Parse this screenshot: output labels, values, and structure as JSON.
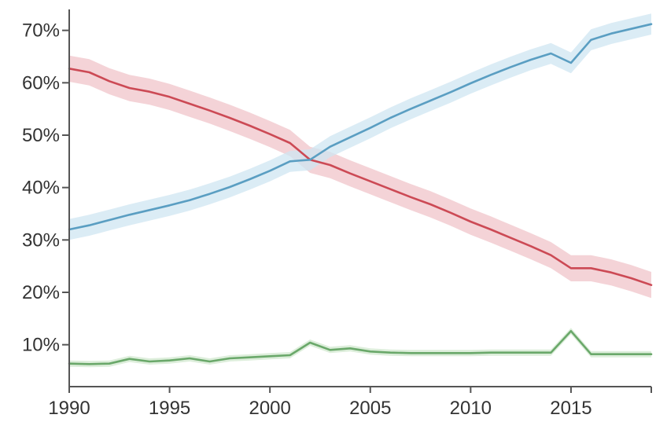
{
  "chart_data": {
    "type": "line",
    "title": "",
    "xlabel": "",
    "ylabel": "",
    "xlim": [
      1990,
      2019
    ],
    "ylim": [
      2,
      74
    ],
    "grid": false,
    "x_ticks": [
      1990,
      1995,
      2000,
      2005,
      2010,
      2015
    ],
    "y_ticks": [
      10,
      20,
      30,
      40,
      50,
      60,
      70
    ],
    "y_tick_labels": [
      "10%",
      "20%",
      "30%",
      "40%",
      "50%",
      "60%",
      "70%"
    ],
    "x": [
      1990,
      1991,
      1992,
      1993,
      1994,
      1995,
      1996,
      1997,
      1998,
      1999,
      2000,
      2001,
      2002,
      2003,
      2004,
      2005,
      2006,
      2007,
      2008,
      2009,
      2010,
      2011,
      2012,
      2013,
      2014,
      2015,
      2016,
      2017,
      2018,
      2019
    ],
    "series": [
      {
        "color": "#cc4a55",
        "band_color": "#f0c4ca",
        "band_halfwidth": 2.5,
        "values": [
          62.7,
          62.0,
          60.3,
          59.0,
          58.3,
          57.3,
          56.0,
          54.7,
          53.3,
          51.8,
          50.2,
          48.5,
          45.3,
          44.3,
          42.7,
          41.2,
          39.7,
          38.2,
          36.8,
          35.2,
          33.5,
          32.0,
          30.4,
          28.8,
          27.1,
          24.6,
          24.6,
          23.8,
          22.7,
          21.4
        ]
      },
      {
        "color": "#5a9ec2",
        "band_color": "#cfe6f2",
        "band_halfwidth": 2.0,
        "values": [
          32.0,
          32.8,
          33.8,
          34.8,
          35.7,
          36.6,
          37.6,
          38.8,
          40.1,
          41.6,
          43.2,
          45.0,
          45.3,
          47.8,
          49.6,
          51.4,
          53.3,
          55.0,
          56.6,
          58.2,
          59.9,
          61.5,
          63.0,
          64.4,
          65.6,
          63.8,
          68.2,
          69.4,
          70.3,
          71.2
        ]
      },
      {
        "color": "#6aa86a",
        "band_color": "#d2e8cf",
        "band_halfwidth": 0.6,
        "values": [
          6.4,
          6.3,
          6.4,
          7.3,
          6.8,
          7.0,
          7.4,
          6.8,
          7.4,
          7.6,
          7.8,
          8.0,
          10.4,
          9.0,
          9.3,
          8.7,
          8.5,
          8.4,
          8.4,
          8.4,
          8.4,
          8.5,
          8.5,
          8.5,
          8.5,
          12.6,
          8.2,
          8.2,
          8.2,
          8.2
        ]
      }
    ]
  }
}
